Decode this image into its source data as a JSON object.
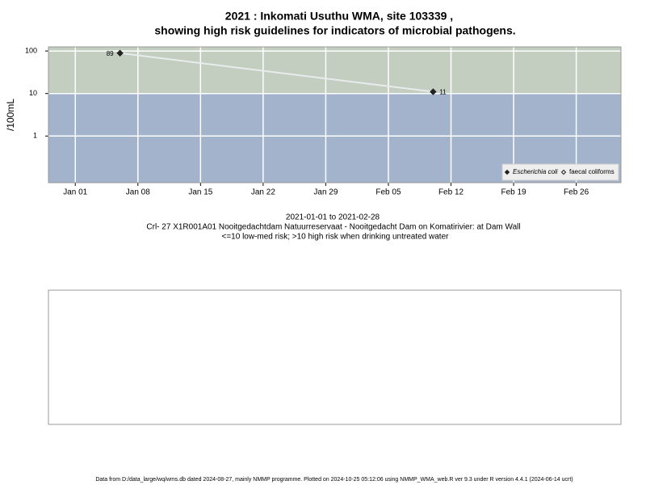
{
  "chart_data": {
    "type": "line",
    "title": [
      "2021 : Inkomati Usuthu WMA, site 103339 ,",
      "showing high risk guidelines for indicators of microbial pathogens."
    ],
    "y_label": "/100mL",
    "x": [
      "2021-01-06",
      "2021-02-10"
    ],
    "series": [
      {
        "name": "Escherichia coli",
        "color": "#222222",
        "values": [
          89,
          11
        ]
      },
      {
        "name": "faecal coliforms",
        "color": "#222222",
        "values": [
          null,
          null
        ]
      }
    ],
    "line_color": "#e8ecec",
    "xlim": [
      "2020-12-29",
      "2021-03-03"
    ],
    "xticks": [
      {
        "value": "2021-01-01",
        "label": "Jan 01"
      },
      {
        "value": "2021-01-08",
        "label": "Jan 08"
      },
      {
        "value": "2021-01-15",
        "label": "Jan 15"
      },
      {
        "value": "2021-01-22",
        "label": "Jan 22"
      },
      {
        "value": "2021-01-29",
        "label": "Jan 29"
      },
      {
        "value": "2021-02-05",
        "label": "Feb 05"
      },
      {
        "value": "2021-02-12",
        "label": "Feb 12"
      },
      {
        "value": "2021-02-19",
        "label": "Feb 19"
      },
      {
        "value": "2021-02-26",
        "label": "Feb 26"
      }
    ],
    "ylim": [
      0.08,
      125
    ],
    "yticks": [
      1,
      10,
      100
    ],
    "log_y": true,
    "grid": true,
    "threshold": 10,
    "above_color": "#c3cdc0",
    "below_color": "#a3b3cc",
    "legend": "bottom-right",
    "subtitle": [
      "2021-01-01 to 2021-02-28",
      "Crl- 27 X1R001A01 Nooitgedachtdam Natuurreservaat - Nooitgedacht Dam on Komatirivier: at Dam Wall",
      "<=10 low-med risk; >10 high risk when drinking untreated water"
    ],
    "footer": "Data from D:/data_large/wq/wms.db dated 2024-08-27, mainly NMMP programme. Plotted on 2024-10-25 05:12:06 using NMMP_WMA_web.R ver 9.3 under R version 4.4.1 (2024-06-14 ucrt)"
  }
}
